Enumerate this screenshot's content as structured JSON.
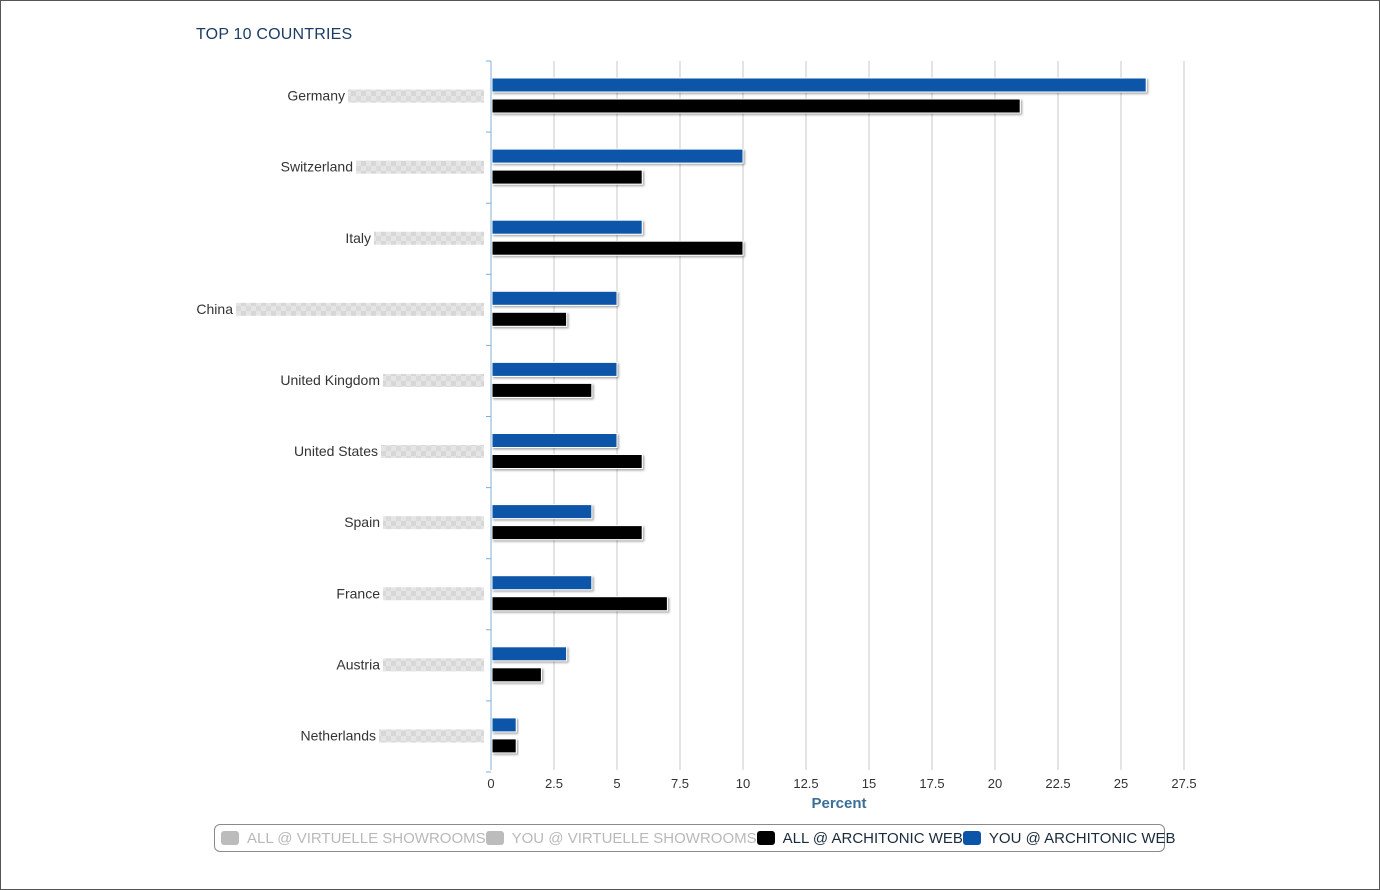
{
  "chart_data": {
    "type": "bar",
    "orientation": "horizontal",
    "title": "TOP 10 COUNTRIES",
    "xlabel": "Percent",
    "ylabel": "",
    "xlim": [
      0,
      27.5
    ],
    "x_ticks": [
      "0",
      "2.5",
      "5",
      "7.5",
      "10",
      "12.5",
      "15",
      "17.5",
      "20",
      "22.5",
      "25",
      "27.5"
    ],
    "grid": true,
    "categories": [
      "Germany",
      "Switzerland",
      "Italy",
      "China",
      "United Kingdom",
      "United States",
      "Spain",
      "France",
      "Austria",
      "Netherlands"
    ],
    "series": [
      {
        "name": "YOU @ ARCHITONIC WEB",
        "color": "#0a55a8",
        "values": [
          26,
          10,
          6,
          5,
          5,
          5,
          4,
          4,
          3,
          1
        ]
      },
      {
        "name": "ALL @ ARCHITONIC WEB",
        "color": "#000000",
        "values": [
          21,
          6,
          10,
          3,
          4,
          6,
          6,
          7,
          2,
          1
        ]
      }
    ],
    "legend_position": "bottom"
  },
  "legend": {
    "items": [
      {
        "label": "ALL @ VIRTUELLE SHOWROOMS",
        "color": "#bcbcbc",
        "visible": false
      },
      {
        "label": "YOU @ VIRTUELLE SHOWROOMS",
        "color": "#bcbcbc",
        "visible": false
      },
      {
        "label": "ALL @ ARCHITONIC WEB",
        "color": "#000000",
        "visible": true
      },
      {
        "label": "YOU @ ARCHITONIC WEB",
        "color": "#0a55a8",
        "visible": true
      }
    ]
  },
  "colors": {
    "title": "#1b3d63",
    "axis_label": "#3b6f99",
    "grid": "#c8c8c8",
    "axis_line": "#7fb0d6"
  }
}
